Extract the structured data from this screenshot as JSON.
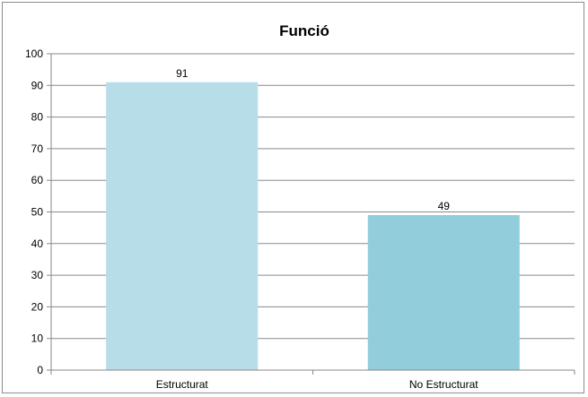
{
  "chart_data": {
    "type": "bar",
    "title": "Funció",
    "categories": [
      "Estructurat",
      "No Estructurat"
    ],
    "values": [
      91,
      49
    ],
    "data_labels": [
      "91",
      "49"
    ],
    "colors": [
      "#b7dde8",
      "#92cddc"
    ],
    "xlabel": "",
    "ylabel": "",
    "ylim": [
      0,
      100
    ],
    "yticks": [
      0,
      10,
      20,
      30,
      40,
      50,
      60,
      70,
      80,
      90,
      100
    ],
    "grid": true,
    "legend": "none"
  }
}
